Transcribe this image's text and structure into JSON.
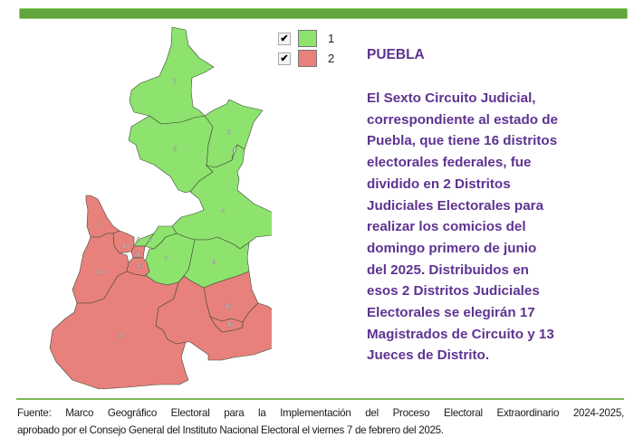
{
  "colors": {
    "group1": "#8ee26e",
    "group2": "#e8817c",
    "text": "#5e3391",
    "bar": "#62a53f"
  },
  "legend": [
    {
      "label": "1",
      "checked": true,
      "color": "#8ee26e"
    },
    {
      "label": "2",
      "checked": true,
      "color": "#e8817c"
    }
  ],
  "map": {
    "districts": [
      {
        "id": "1",
        "group": "1"
      },
      {
        "id": "2",
        "group": "1"
      },
      {
        "id": "3",
        "group": "1"
      },
      {
        "id": "4",
        "group": "1"
      },
      {
        "id": "6",
        "group": "1"
      },
      {
        "id": "7",
        "group": "1"
      },
      {
        "id": "8",
        "group": "1"
      },
      {
        "id": "9",
        "group": "1"
      },
      {
        "id": "5",
        "group": "2"
      },
      {
        "id": "10",
        "group": "2"
      },
      {
        "id": "11",
        "group": "2"
      },
      {
        "id": "12",
        "group": "2"
      },
      {
        "id": "13",
        "group": "2"
      },
      {
        "id": "14",
        "group": "2"
      },
      {
        "id": "15",
        "group": "2"
      },
      {
        "id": "16",
        "group": "2"
      }
    ]
  },
  "title": "PUEBLA",
  "paragraph_lines": [
    "El Sexto Circuito Judicial,",
    "correspondiente al estado de",
    "Puebla, que tiene 16 distritos",
    "electorales federales, fue",
    "dividido en 2 Distritos",
    "Judiciales Electorales para",
    "realizar los comicios del",
    "domingo primero de junio",
    "del 2025. Distribuidos en",
    "esos 2 Distritos Judiciales",
    "Electorales se elegirán 17",
    "Magistrados de Circuito y 13",
    "Jueces de Distrito."
  ],
  "source": {
    "line1": "Fuente: Marco Geográfico Electoral para la Implementación del Proceso Electoral Extraordinario 2024-2025,",
    "line2": "aprobado por el Consejo General del Instituto Nacional Electoral el viernes 7 de febrero del 2025."
  }
}
